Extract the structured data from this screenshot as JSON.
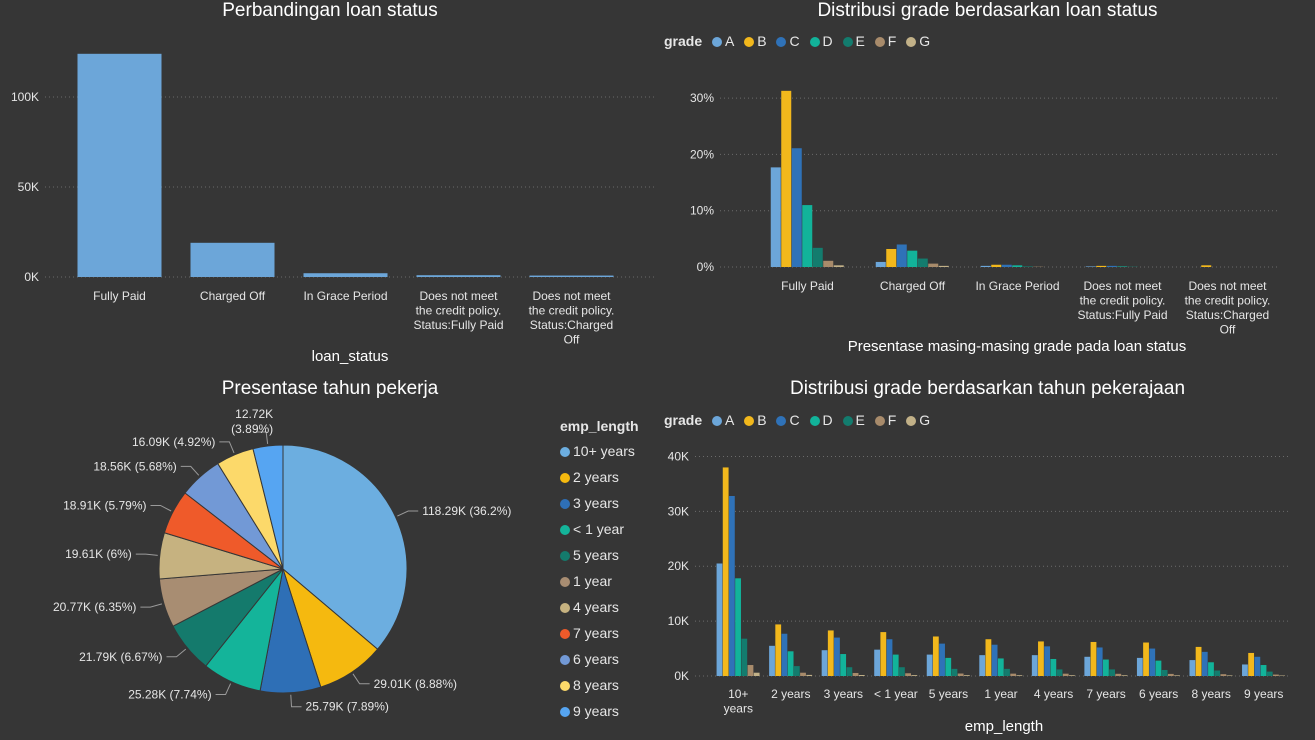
{
  "panels": {
    "loan_status": {
      "title": "Perbandingan loan status"
    },
    "grade_status": {
      "title": "Distribusi grade berdasarkan loan status"
    },
    "emp_pie": {
      "title": "Presentase tahun pekerja"
    },
    "grade_emp": {
      "title": "Distribusi grade berdasarkan tahun pekerajaan"
    }
  },
  "legend": {
    "grade_title": "grade",
    "grades": [
      "A",
      "B",
      "C",
      "D",
      "E",
      "F",
      "G"
    ],
    "grade_colors": [
      "#6ca6d9",
      "#f2b81c",
      "#2f72b8",
      "#12b39a",
      "#137c6e",
      "#a88b6b",
      "#c2b188"
    ],
    "emp_title": "emp_length",
    "emp_items": [
      "10+ years",
      "2 years",
      "3 years",
      "< 1 year",
      "5 years",
      "1 year",
      "4 years",
      "7 years",
      "6 years",
      "8 years",
      "9 years"
    ],
    "emp_colors": [
      "#6caee0",
      "#f5b90f",
      "#2e6fb6",
      "#14b49a",
      "#147a6c",
      "#a88d72",
      "#c6b280",
      "#ef5a2a",
      "#7299d6",
      "#fcd96a",
      "#56a5f2"
    ]
  },
  "chart_data": [
    {
      "type": "bar",
      "title": "Perbandingan loan status",
      "xlabel": "loan_status",
      "ylabel": "",
      "categories": [
        "Fully Paid",
        "Charged Off",
        "In Grace Period",
        "Does not meet the credit policy. Status:Fully Paid",
        "Does not meet the credit policy. Status:Charged Off"
      ],
      "category_lines": [
        [
          "Fully Paid"
        ],
        [
          "Charged Off"
        ],
        [
          "In Grace Period"
        ],
        [
          "Does not meet",
          "the credit policy.",
          "Status:Fully Paid"
        ],
        [
          "Does not meet",
          "the credit policy.",
          "Status:Charged",
          "Off"
        ]
      ],
      "values": [
        124000,
        19000,
        2100,
        1000,
        800
      ],
      "ylim": [
        0,
        130000
      ],
      "yticks": [
        {
          "v": 0,
          "label": "0K"
        },
        {
          "v": 50000,
          "label": "50K"
        },
        {
          "v": 100000,
          "label": "100K"
        }
      ],
      "color": "#6ca6d9",
      "grid": true
    },
    {
      "type": "bar",
      "title": "Distribusi grade berdasarkan loan status",
      "xlabel": "Presentase masing-masing grade pada loan status",
      "ylabel": "",
      "categories": [
        "Fully Paid",
        "Charged Off",
        "In Grace Period",
        "Does not meet the credit policy. Status:Fully Paid",
        "Does not meet the credit policy. Status:Charged Off"
      ],
      "category_lines": [
        [
          "Fully Paid"
        ],
        [
          "Charged Off"
        ],
        [
          "In Grace Period"
        ],
        [
          "Does not meet",
          "the credit policy.",
          "Status:Fully Paid"
        ],
        [
          "Does not meet",
          "the credit policy.",
          "Status:Charged",
          "Off"
        ]
      ],
      "series": [
        {
          "name": "A",
          "values": [
            17.7,
            0.9,
            0.2,
            0.1,
            0.0
          ]
        },
        {
          "name": "B",
          "values": [
            31.3,
            3.2,
            0.4,
            0.2,
            0.3
          ]
        },
        {
          "name": "C",
          "values": [
            21.1,
            4.0,
            0.4,
            0.2,
            0.0
          ]
        },
        {
          "name": "D",
          "values": [
            11.0,
            2.9,
            0.3,
            0.1,
            0.0
          ]
        },
        {
          "name": "E",
          "values": [
            3.4,
            1.5,
            0.1,
            0.05,
            0.0
          ]
        },
        {
          "name": "F",
          "values": [
            1.1,
            0.6,
            0.05,
            0.0,
            0.0
          ]
        },
        {
          "name": "G",
          "values": [
            0.3,
            0.2,
            0.0,
            0.0,
            0.0
          ]
        }
      ],
      "ylim": [
        0,
        35
      ],
      "yticks": [
        {
          "v": 0,
          "label": "0%"
        },
        {
          "v": 10,
          "label": "10%"
        },
        {
          "v": 20,
          "label": "20%"
        },
        {
          "v": 30,
          "label": "30%"
        }
      ],
      "grid": true,
      "legend_position": "top-left"
    },
    {
      "type": "pie",
      "title": "Presentase tahun pekerja",
      "legend_title": "emp_length",
      "slices": [
        {
          "name": "10+ years",
          "value": 118290,
          "label": "118.29K (36.2%)"
        },
        {
          "name": "2 years",
          "value": 29010,
          "label": "29.01K (8.88%)"
        },
        {
          "name": "3 years",
          "value": 25790,
          "label": "25.79K (7.89%)"
        },
        {
          "name": "< 1 year",
          "value": 25280,
          "label": "25.28K (7.74%)"
        },
        {
          "name": "5 years",
          "value": 21790,
          "label": "21.79K (6.67%)"
        },
        {
          "name": "1 year",
          "value": 20770,
          "label": "20.77K (6.35%)"
        },
        {
          "name": "4 years",
          "value": 19610,
          "label": "19.61K (6%)"
        },
        {
          "name": "7 years",
          "value": 18910,
          "label": "18.91K (5.79%)"
        },
        {
          "name": "6 years",
          "value": 18560,
          "label": "18.56K (5.68%)"
        },
        {
          "name": "8 years",
          "value": 16090,
          "label": "16.09K (4.92%)"
        },
        {
          "name": "9 years",
          "value": 12720,
          "label": "12.72K (3.89%)"
        }
      ],
      "legend_position": "right"
    },
    {
      "type": "bar",
      "title": "Distribusi grade berdasarkan tahun pekerajaan",
      "xlabel": "emp_length",
      "ylabel": "",
      "categories": [
        "10+ years",
        "2 years",
        "3 years",
        "< 1 year",
        "5 years",
        "1 year",
        "4 years",
        "7 years",
        "6 years",
        "8 years",
        "9 years"
      ],
      "category_lines": [
        [
          "10+",
          "years"
        ],
        [
          "2 years"
        ],
        [
          "3 years"
        ],
        [
          "< 1 year"
        ],
        [
          "5 years"
        ],
        [
          "1 year"
        ],
        [
          "4 years"
        ],
        [
          "7 years"
        ],
        [
          "6 years"
        ],
        [
          "8 years"
        ],
        [
          "9 years"
        ]
      ],
      "series": [
        {
          "name": "A",
          "values": [
            20500,
            5500,
            4700,
            4800,
            3900,
            3800,
            3800,
            3500,
            3300,
            2900,
            2100
          ]
        },
        {
          "name": "B",
          "values": [
            38000,
            9400,
            8300,
            8000,
            7200,
            6700,
            6300,
            6200,
            6100,
            5300,
            4200
          ]
        },
        {
          "name": "C",
          "values": [
            32800,
            7700,
            7000,
            6700,
            5900,
            5700,
            5400,
            5200,
            5000,
            4400,
            3500
          ]
        },
        {
          "name": "D",
          "values": [
            17800,
            4500,
            4000,
            3900,
            3300,
            3200,
            3100,
            3000,
            2800,
            2500,
            2000
          ]
        },
        {
          "name": "E",
          "values": [
            6800,
            1800,
            1600,
            1600,
            1300,
            1300,
            1200,
            1200,
            1100,
            1000,
            800
          ]
        },
        {
          "name": "F",
          "values": [
            2000,
            600,
            550,
            500,
            450,
            430,
            420,
            400,
            380,
            330,
            260
          ]
        },
        {
          "name": "G",
          "values": [
            600,
            200,
            180,
            160,
            150,
            140,
            140,
            130,
            120,
            110,
            90
          ]
        }
      ],
      "ylim": [
        0,
        43000
      ],
      "yticks": [
        {
          "v": 0,
          "label": "0K"
        },
        {
          "v": 10000,
          "label": "10K"
        },
        {
          "v": 20000,
          "label": "20K"
        },
        {
          "v": 30000,
          "label": "30K"
        },
        {
          "v": 40000,
          "label": "40K"
        }
      ],
      "grid": true,
      "legend_position": "top-left"
    }
  ]
}
